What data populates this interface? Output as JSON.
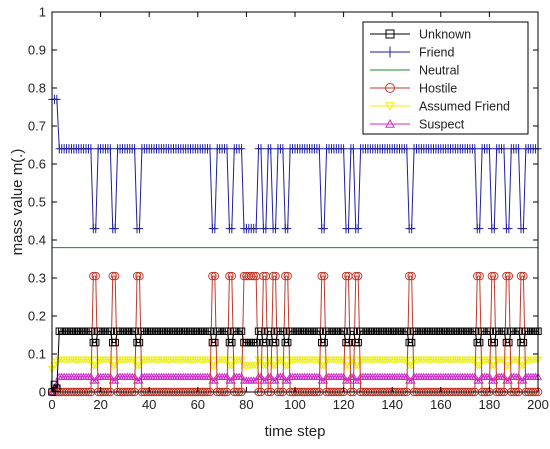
{
  "chart_data": {
    "type": "line",
    "title": "",
    "xlabel": "time step",
    "ylabel": "mass value m(.)",
    "xlim": [
      0,
      200
    ],
    "ylim": [
      0,
      1
    ],
    "xticks": [
      0,
      20,
      40,
      60,
      80,
      100,
      120,
      140,
      160,
      180,
      200
    ],
    "yticks": [
      0,
      0.1,
      0.2,
      0.3,
      0.4,
      0.5,
      0.6,
      0.7,
      0.8,
      0.9,
      1
    ],
    "grid": false,
    "legend_position": "top-right",
    "dip_steps": [
      17,
      18,
      25,
      26,
      35,
      36,
      66,
      67,
      73,
      74,
      79,
      80,
      81,
      82,
      83,
      84,
      87,
      88,
      91,
      92,
      96,
      97,
      111,
      112,
      121,
      122,
      125,
      126,
      147,
      148,
      175,
      176,
      181,
      182,
      187,
      188,
      193,
      194
    ],
    "series": [
      {
        "name": "Unknown",
        "color": "#000000",
        "marker": "square",
        "initial": [
          0,
          0.02,
          0.01
        ],
        "base": 0.16,
        "dip": 0.13
      },
      {
        "name": "Friend",
        "color": "#1f1f9e",
        "marker": "plus",
        "initial": [
          0.77,
          0.77,
          0.77
        ],
        "base": 0.64,
        "dip": 0.43
      },
      {
        "name": "Neutral",
        "color": "#1a8a2a",
        "marker": "none",
        "initial": [
          0.38,
          0.38,
          0.38
        ],
        "base": 0.38,
        "dip": 0.38
      },
      {
        "name": "Hostile",
        "color": "#c0392b",
        "marker": "circle",
        "initial": [
          0,
          0,
          0
        ],
        "base": 0.0,
        "dip": 0.305
      },
      {
        "name": "Assumed Friend",
        "color": "#f0f000",
        "marker": "triangle-down",
        "initial": [
          0.06,
          0.07,
          0.08
        ],
        "base": 0.085,
        "dip": 0.07
      },
      {
        "name": "Suspect",
        "color": "#d02bd0",
        "marker": "triangle-up",
        "initial": [
          0,
          0.01,
          0.02
        ],
        "base": 0.04,
        "dip": 0.03
      }
    ]
  }
}
